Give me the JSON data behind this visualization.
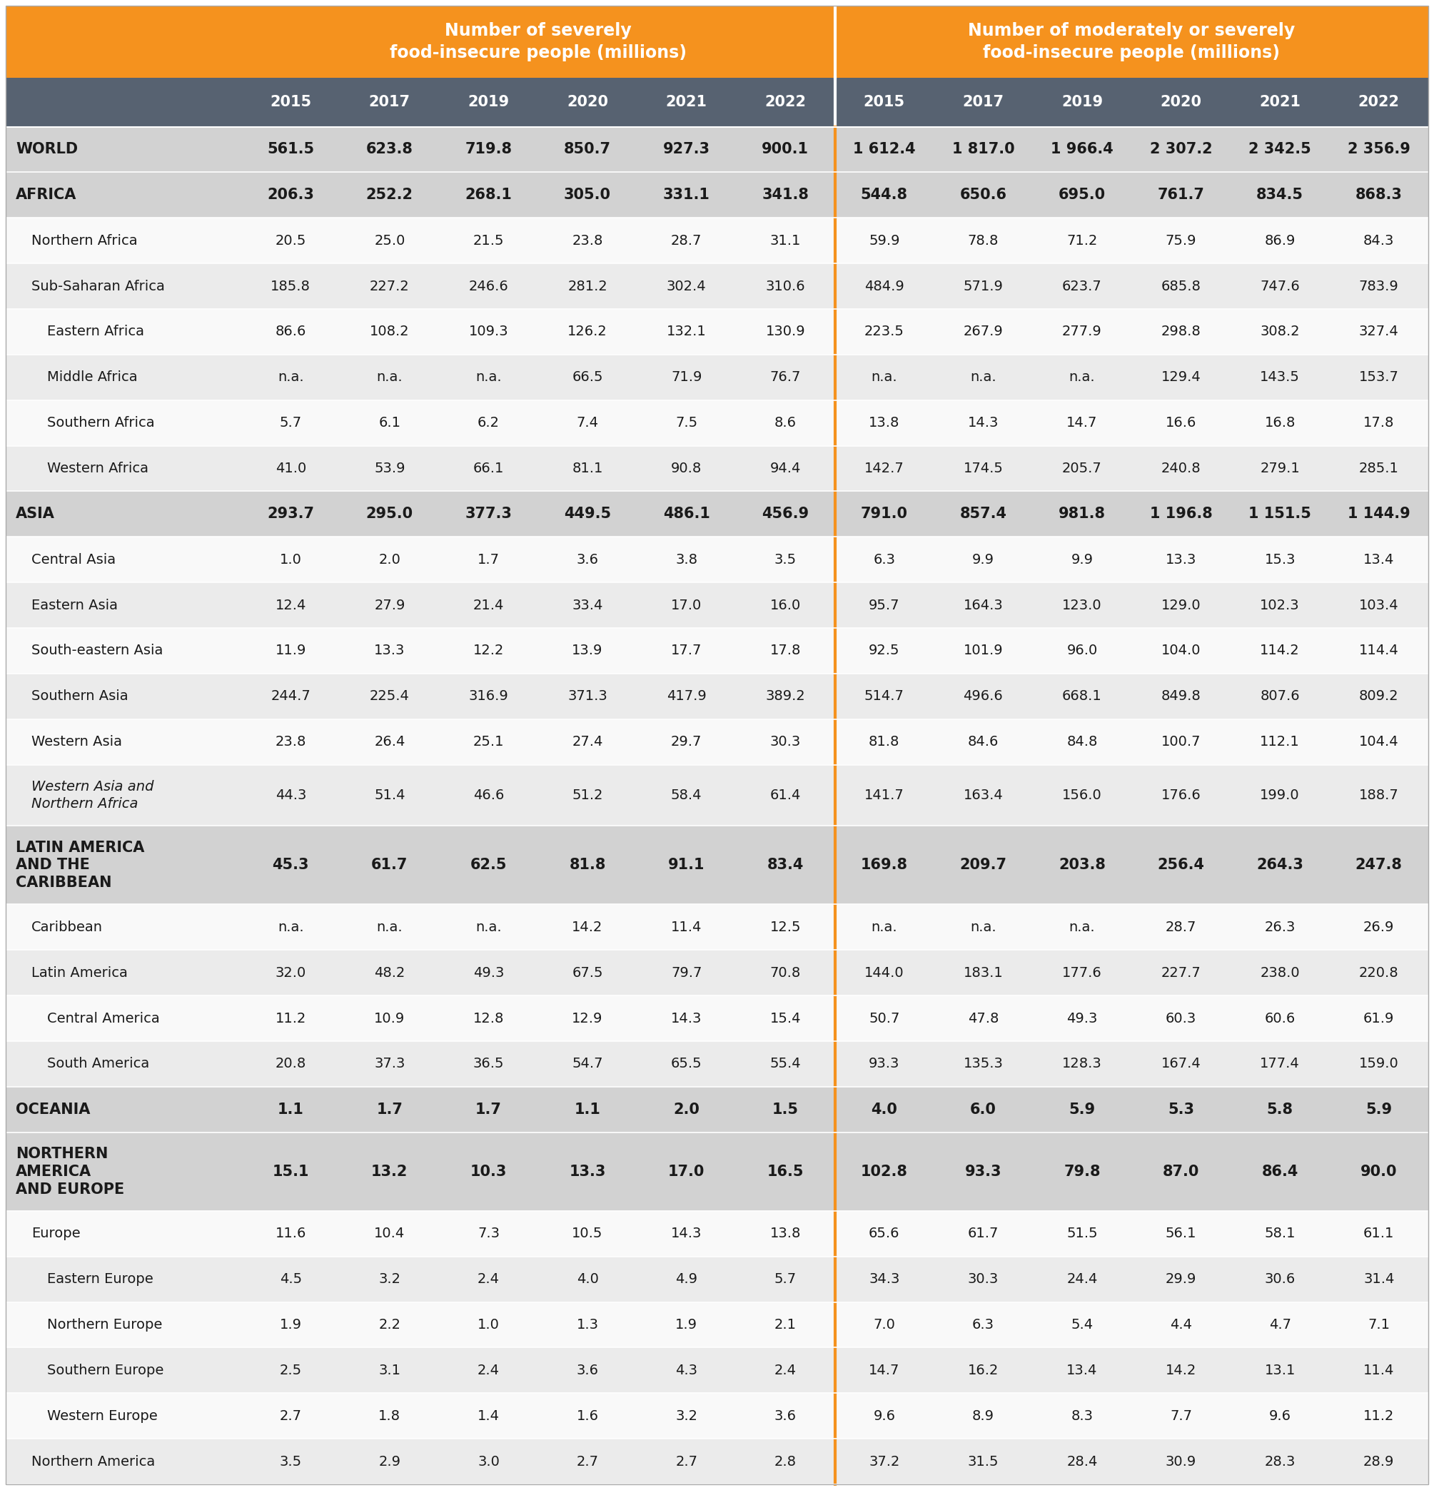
{
  "header1": "Number of severely\nfood-insecure people (millions)",
  "header2": "Number of moderately or severely\nfood-insecure people (millions)",
  "years": [
    "2015",
    "2017",
    "2019",
    "2020",
    "2021",
    "2022"
  ],
  "orange": "#F5921E",
  "dark_header_bg": "#576271",
  "rows": [
    {
      "label": "WORLD",
      "indent": 0,
      "bold": true,
      "italic": false,
      "severe": [
        "561.5",
        "623.8",
        "719.8",
        "850.7",
        "927.3",
        "900.1"
      ],
      "mod_severe": [
        "1 612.4",
        "1 817.0",
        "1 966.4",
        "2 307.2",
        "2 342.5",
        "2 356.9"
      ],
      "shade": "bold"
    },
    {
      "label": "AFRICA",
      "indent": 0,
      "bold": true,
      "italic": false,
      "severe": [
        "206.3",
        "252.2",
        "268.1",
        "305.0",
        "331.1",
        "341.8"
      ],
      "mod_severe": [
        "544.8",
        "650.6",
        "695.0",
        "761.7",
        "834.5",
        "868.3"
      ],
      "shade": "bold"
    },
    {
      "label": "Northern Africa",
      "indent": 1,
      "bold": false,
      "italic": false,
      "severe": [
        "20.5",
        "25.0",
        "21.5",
        "23.8",
        "28.7",
        "31.1"
      ],
      "mod_severe": [
        "59.9",
        "78.8",
        "71.2",
        "75.9",
        "86.9",
        "84.3"
      ],
      "shade": "white"
    },
    {
      "label": "Sub-Saharan Africa",
      "indent": 1,
      "bold": false,
      "italic": false,
      "severe": [
        "185.8",
        "227.2",
        "246.6",
        "281.2",
        "302.4",
        "310.6"
      ],
      "mod_severe": [
        "484.9",
        "571.9",
        "623.7",
        "685.8",
        "747.6",
        "783.9"
      ],
      "shade": "light"
    },
    {
      "label": "Eastern Africa",
      "indent": 2,
      "bold": false,
      "italic": false,
      "severe": [
        "86.6",
        "108.2",
        "109.3",
        "126.2",
        "132.1",
        "130.9"
      ],
      "mod_severe": [
        "223.5",
        "267.9",
        "277.9",
        "298.8",
        "308.2",
        "327.4"
      ],
      "shade": "white"
    },
    {
      "label": "Middle Africa",
      "indent": 2,
      "bold": false,
      "italic": false,
      "severe": [
        "n.a.",
        "n.a.",
        "n.a.",
        "66.5",
        "71.9",
        "76.7"
      ],
      "mod_severe": [
        "n.a.",
        "n.a.",
        "n.a.",
        "129.4",
        "143.5",
        "153.7"
      ],
      "shade": "light"
    },
    {
      "label": "Southern Africa",
      "indent": 2,
      "bold": false,
      "italic": false,
      "severe": [
        "5.7",
        "6.1",
        "6.2",
        "7.4",
        "7.5",
        "8.6"
      ],
      "mod_severe": [
        "13.8",
        "14.3",
        "14.7",
        "16.6",
        "16.8",
        "17.8"
      ],
      "shade": "white"
    },
    {
      "label": "Western Africa",
      "indent": 2,
      "bold": false,
      "italic": false,
      "severe": [
        "41.0",
        "53.9",
        "66.1",
        "81.1",
        "90.8",
        "94.4"
      ],
      "mod_severe": [
        "142.7",
        "174.5",
        "205.7",
        "240.8",
        "279.1",
        "285.1"
      ],
      "shade": "light"
    },
    {
      "label": "ASIA",
      "indent": 0,
      "bold": true,
      "italic": false,
      "severe": [
        "293.7",
        "295.0",
        "377.3",
        "449.5",
        "486.1",
        "456.9"
      ],
      "mod_severe": [
        "791.0",
        "857.4",
        "981.8",
        "1 196.8",
        "1 151.5",
        "1 144.9"
      ],
      "shade": "bold"
    },
    {
      "label": "Central Asia",
      "indent": 1,
      "bold": false,
      "italic": false,
      "severe": [
        "1.0",
        "2.0",
        "1.7",
        "3.6",
        "3.8",
        "3.5"
      ],
      "mod_severe": [
        "6.3",
        "9.9",
        "9.9",
        "13.3",
        "15.3",
        "13.4"
      ],
      "shade": "white"
    },
    {
      "label": "Eastern Asia",
      "indent": 1,
      "bold": false,
      "italic": false,
      "severe": [
        "12.4",
        "27.9",
        "21.4",
        "33.4",
        "17.0",
        "16.0"
      ],
      "mod_severe": [
        "95.7",
        "164.3",
        "123.0",
        "129.0",
        "102.3",
        "103.4"
      ],
      "shade": "light"
    },
    {
      "label": "South-eastern Asia",
      "indent": 1,
      "bold": false,
      "italic": false,
      "severe": [
        "11.9",
        "13.3",
        "12.2",
        "13.9",
        "17.7",
        "17.8"
      ],
      "mod_severe": [
        "92.5",
        "101.9",
        "96.0",
        "104.0",
        "114.2",
        "114.4"
      ],
      "shade": "white"
    },
    {
      "label": "Southern Asia",
      "indent": 1,
      "bold": false,
      "italic": false,
      "severe": [
        "244.7",
        "225.4",
        "316.9",
        "371.3",
        "417.9",
        "389.2"
      ],
      "mod_severe": [
        "514.7",
        "496.6",
        "668.1",
        "849.8",
        "807.6",
        "809.2"
      ],
      "shade": "light"
    },
    {
      "label": "Western Asia",
      "indent": 1,
      "bold": false,
      "italic": false,
      "severe": [
        "23.8",
        "26.4",
        "25.1",
        "27.4",
        "29.7",
        "30.3"
      ],
      "mod_severe": [
        "81.8",
        "84.6",
        "84.8",
        "100.7",
        "112.1",
        "104.4"
      ],
      "shade": "white"
    },
    {
      "label": "Western Asia and\nNorthern Africa",
      "indent": 1,
      "bold": false,
      "italic": true,
      "severe": [
        "44.3",
        "51.4",
        "46.6",
        "51.2",
        "58.4",
        "61.4"
      ],
      "mod_severe": [
        "141.7",
        "163.4",
        "156.0",
        "176.6",
        "199.0",
        "188.7"
      ],
      "shade": "light"
    },
    {
      "label": "LATIN AMERICA\nAND THE\nCARIBBEAN",
      "indent": 0,
      "bold": true,
      "italic": false,
      "severe": [
        "45.3",
        "61.7",
        "62.5",
        "81.8",
        "91.1",
        "83.4"
      ],
      "mod_severe": [
        "169.8",
        "209.7",
        "203.8",
        "256.4",
        "264.3",
        "247.8"
      ],
      "shade": "bold"
    },
    {
      "label": "Caribbean",
      "indent": 1,
      "bold": false,
      "italic": false,
      "severe": [
        "n.a.",
        "n.a.",
        "n.a.",
        "14.2",
        "11.4",
        "12.5"
      ],
      "mod_severe": [
        "n.a.",
        "n.a.",
        "n.a.",
        "28.7",
        "26.3",
        "26.9"
      ],
      "shade": "white"
    },
    {
      "label": "Latin America",
      "indent": 1,
      "bold": false,
      "italic": false,
      "severe": [
        "32.0",
        "48.2",
        "49.3",
        "67.5",
        "79.7",
        "70.8"
      ],
      "mod_severe": [
        "144.0",
        "183.1",
        "177.6",
        "227.7",
        "238.0",
        "220.8"
      ],
      "shade": "light"
    },
    {
      "label": "Central America",
      "indent": 2,
      "bold": false,
      "italic": false,
      "severe": [
        "11.2",
        "10.9",
        "12.8",
        "12.9",
        "14.3",
        "15.4"
      ],
      "mod_severe": [
        "50.7",
        "47.8",
        "49.3",
        "60.3",
        "60.6",
        "61.9"
      ],
      "shade": "white"
    },
    {
      "label": "South America",
      "indent": 2,
      "bold": false,
      "italic": false,
      "severe": [
        "20.8",
        "37.3",
        "36.5",
        "54.7",
        "65.5",
        "55.4"
      ],
      "mod_severe": [
        "93.3",
        "135.3",
        "128.3",
        "167.4",
        "177.4",
        "159.0"
      ],
      "shade": "light"
    },
    {
      "label": "OCEANIA",
      "indent": 0,
      "bold": true,
      "italic": false,
      "severe": [
        "1.1",
        "1.7",
        "1.7",
        "1.1",
        "2.0",
        "1.5"
      ],
      "mod_severe": [
        "4.0",
        "6.0",
        "5.9",
        "5.3",
        "5.8",
        "5.9"
      ],
      "shade": "bold"
    },
    {
      "label": "NORTHERN\nAMERICA\nAND EUROPE",
      "indent": 0,
      "bold": true,
      "italic": false,
      "severe": [
        "15.1",
        "13.2",
        "10.3",
        "13.3",
        "17.0",
        "16.5"
      ],
      "mod_severe": [
        "102.8",
        "93.3",
        "79.8",
        "87.0",
        "86.4",
        "90.0"
      ],
      "shade": "bold"
    },
    {
      "label": "Europe",
      "indent": 1,
      "bold": false,
      "italic": false,
      "severe": [
        "11.6",
        "10.4",
        "7.3",
        "10.5",
        "14.3",
        "13.8"
      ],
      "mod_severe": [
        "65.6",
        "61.7",
        "51.5",
        "56.1",
        "58.1",
        "61.1"
      ],
      "shade": "white"
    },
    {
      "label": "Eastern Europe",
      "indent": 2,
      "bold": false,
      "italic": false,
      "severe": [
        "4.5",
        "3.2",
        "2.4",
        "4.0",
        "4.9",
        "5.7"
      ],
      "mod_severe": [
        "34.3",
        "30.3",
        "24.4",
        "29.9",
        "30.6",
        "31.4"
      ],
      "shade": "light"
    },
    {
      "label": "Northern Europe",
      "indent": 2,
      "bold": false,
      "italic": false,
      "severe": [
        "1.9",
        "2.2",
        "1.0",
        "1.3",
        "1.9",
        "2.1"
      ],
      "mod_severe": [
        "7.0",
        "6.3",
        "5.4",
        "4.4",
        "4.7",
        "7.1"
      ],
      "shade": "white"
    },
    {
      "label": "Southern Europe",
      "indent": 2,
      "bold": false,
      "italic": false,
      "severe": [
        "2.5",
        "3.1",
        "2.4",
        "3.6",
        "4.3",
        "2.4"
      ],
      "mod_severe": [
        "14.7",
        "16.2",
        "13.4",
        "14.2",
        "13.1",
        "11.4"
      ],
      "shade": "light"
    },
    {
      "label": "Western Europe",
      "indent": 2,
      "bold": false,
      "italic": false,
      "severe": [
        "2.7",
        "1.8",
        "1.4",
        "1.6",
        "3.2",
        "3.6"
      ],
      "mod_severe": [
        "9.6",
        "8.9",
        "8.3",
        "7.7",
        "9.6",
        "11.2"
      ],
      "shade": "white"
    },
    {
      "label": "Northern America",
      "indent": 1,
      "bold": false,
      "italic": false,
      "severe": [
        "3.5",
        "2.9",
        "3.0",
        "2.7",
        "2.7",
        "2.8"
      ],
      "mod_severe": [
        "37.2",
        "31.5",
        "28.4",
        "30.9",
        "28.3",
        "28.9"
      ],
      "shade": "light"
    }
  ]
}
